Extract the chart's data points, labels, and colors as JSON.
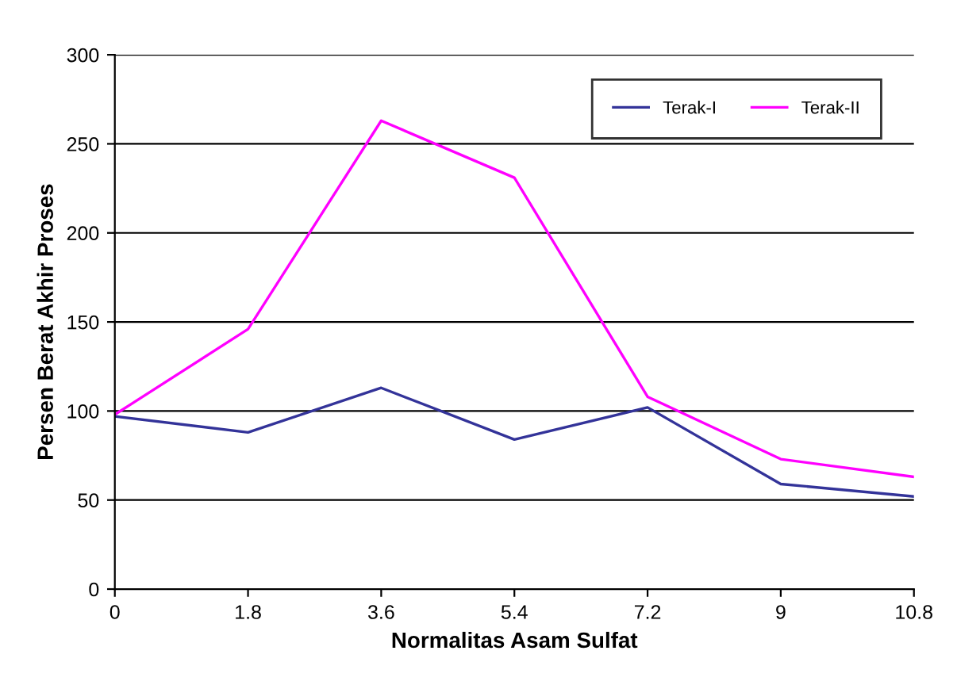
{
  "chart_data": {
    "type": "line",
    "xlabel": "Normalitas Asam Sulfat",
    "ylabel": "Persen Berat Akhir Proses",
    "x": [
      0,
      1.8,
      3.6,
      5.4,
      7.2,
      9,
      10.8
    ],
    "series": [
      {
        "name": "Terak-I",
        "color": "#333399",
        "values": [
          97,
          88,
          113,
          84,
          102,
          59,
          52
        ]
      },
      {
        "name": "Terak-II",
        "color": "#ff00ff",
        "values": [
          98,
          146,
          263,
          231,
          108,
          73,
          63
        ]
      }
    ],
    "xlim": [
      0,
      10.8
    ],
    "xticks": [
      0,
      1.8,
      3.6,
      5.4,
      7.2,
      9,
      10.8
    ],
    "ylim": [
      0,
      300
    ],
    "yticks": [
      0,
      50,
      100,
      150,
      200,
      250,
      300
    ],
    "grid": "y",
    "legend": "top right",
    "marker": "none",
    "line_style": "solid"
  }
}
